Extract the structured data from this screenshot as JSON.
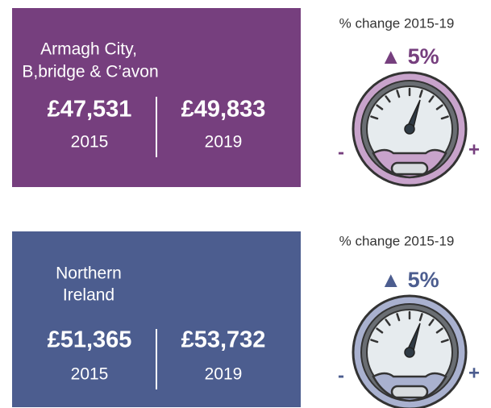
{
  "panels": [
    {
      "name": [
        "Armagh City,",
        "B,bridge & C’avon"
      ],
      "values": [
        {
          "amount": "£47,531",
          "year": "2015"
        },
        {
          "amount": "£49,833",
          "year": "2019"
        }
      ],
      "change_label": "% change 2015-19",
      "change": "▲ 5%",
      "gauge": {
        "min_label": "-",
        "max_label": "+"
      }
    },
    {
      "name": [
        "Northern",
        "Ireland"
      ],
      "values": [
        {
          "amount": "£51,365",
          "year": "2015"
        },
        {
          "amount": "£53,732",
          "year": "2019"
        }
      ],
      "change_label": "% change 2015-19",
      "change": "▲ 5%",
      "gauge": {
        "min_label": "-",
        "max_label": "+"
      }
    }
  ]
}
